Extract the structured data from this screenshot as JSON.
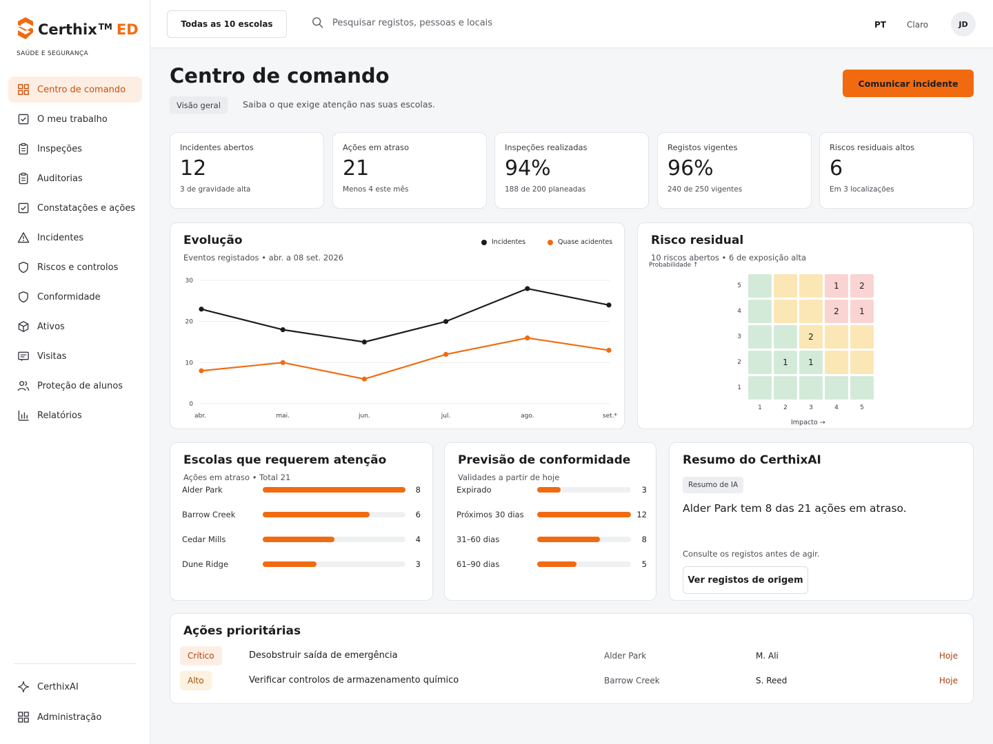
{
  "brand": {
    "name": "Certhix",
    "tm": "TM",
    "suffix": "ED",
    "tagline": "SAÚDE E SEGURANÇA"
  },
  "nav": {
    "items": [
      {
        "label": "Centro de comando",
        "icon": "grid-icon",
        "active": true
      },
      {
        "label": "O meu trabalho",
        "icon": "checkbox-icon"
      },
      {
        "label": "Inspeções",
        "icon": "clipboard-icon"
      },
      {
        "label": "Auditorias",
        "icon": "clipboard-icon"
      },
      {
        "label": "Constatações e ações",
        "icon": "checkbox-icon"
      },
      {
        "label": "Incidentes",
        "icon": "warning-icon"
      },
      {
        "label": "Riscos e controlos",
        "icon": "shield-icon"
      },
      {
        "label": "Conformidade",
        "icon": "shield-icon"
      },
      {
        "label": "Ativos",
        "icon": "cube-icon"
      },
      {
        "label": "Visitas",
        "icon": "id-card-icon"
      },
      {
        "label": "Proteção de alunos",
        "icon": "users-icon"
      },
      {
        "label": "Relatórios",
        "icon": "bar-chart-icon"
      }
    ],
    "bottom": [
      {
        "label": "CerthixAI",
        "icon": "sparkle-icon"
      },
      {
        "label": "Administração",
        "icon": "grid-icon"
      }
    ]
  },
  "topbar": {
    "school_select": "Todas as 10 escolas",
    "search_placeholder": "Pesquisar registos, pessoas e locais",
    "lang": "PT",
    "theme": "Claro",
    "avatar": "JD"
  },
  "header": {
    "title": "Centro de comando",
    "pill": "Visão geral",
    "subtitle": "Saiba o que exige atenção nas suas escolas.",
    "report_button": "Comunicar incidente"
  },
  "kpis": [
    {
      "label": "Incidentes abertos",
      "value": "12",
      "sub": "3 de gravidade alta"
    },
    {
      "label": "Ações em atraso",
      "value": "21",
      "sub": "Menos 4 este mês"
    },
    {
      "label": "Inspeções realizadas",
      "value": "94%",
      "sub": "188 de 200 planeadas"
    },
    {
      "label": "Registos vigentes",
      "value": "96%",
      "sub": "240 de 250 vigentes"
    },
    {
      "label": "Riscos residuais altos",
      "value": "6",
      "sub": "Em 3 localizações"
    }
  ],
  "trend": {
    "title": "Evolução",
    "subtitle": "Eventos registados • abr. a 08 set. 2026",
    "colors": {
      "incidents": "#1c1c1e",
      "near": "#f26a10"
    }
  },
  "risk": {
    "title": "Risco residual",
    "subtitle": "10 riscos abertos • 6 de exposição alta",
    "y_title": "Probabilidade ↑",
    "x_title": "Impacto →",
    "rows": [
      "5",
      "4",
      "3",
      "2",
      "1"
    ],
    "cols": [
      "1",
      "2",
      "3",
      "4",
      "5"
    ],
    "levels": [
      [
        "g",
        "y",
        "y",
        "r",
        "r"
      ],
      [
        "g",
        "y",
        "y",
        "r",
        "r"
      ],
      [
        "g",
        "g",
        "y",
        "y",
        "y"
      ],
      [
        "g",
        "g",
        "g",
        "y",
        "y"
      ],
      [
        "g",
        "g",
        "g",
        "g",
        "g"
      ]
    ],
    "counts": [
      [
        "",
        "",
        "",
        "1",
        "2"
      ],
      [
        "",
        "",
        "",
        "2",
        "1"
      ],
      [
        "",
        "",
        "2",
        "",
        ""
      ],
      [
        "",
        "1",
        "1",
        "",
        ""
      ],
      [
        "",
        "",
        "",
        "",
        ""
      ]
    ],
    "colors": {
      "g": "#d3ead9",
      "y": "#fbe6b6",
      "r": "#f9d4d2"
    }
  },
  "schools": {
    "title": "Escolas que requerem atenção",
    "subtitle": "Ações em atraso • Total 21",
    "max": 8,
    "rows": [
      {
        "label": "Alder Park",
        "value": 8
      },
      {
        "label": "Barrow Creek",
        "value": 6
      },
      {
        "label": "Cedar Mills",
        "value": 4
      },
      {
        "label": "Dune Ridge",
        "value": 3
      }
    ]
  },
  "forecast": {
    "title": "Previsão de conformidade",
    "subtitle": "Validades a partir de hoje",
    "max": 12,
    "rows": [
      {
        "label": "Expirado",
        "value": 3
      },
      {
        "label": "Próximos 30 dias",
        "value": 12
      },
      {
        "label": "31–60 dias",
        "value": 8
      },
      {
        "label": "61–90 dias",
        "value": 5
      }
    ]
  },
  "ai": {
    "title": "Resumo do CerthixAI",
    "pill": "Resumo de IA",
    "text": "Alder Park tem 8 das 21 ações em atraso.",
    "note": "Consulte os registos antes de agir.",
    "button": "Ver registos de origem"
  },
  "priority": {
    "title": "Ações prioritárias",
    "rows": [
      {
        "level": "Crítico",
        "kind": "crit",
        "action": "Desobstruir saída de emergência",
        "school": "Alder Park",
        "owner": "M. Ali",
        "due": "Hoje"
      },
      {
        "level": "Alto",
        "kind": "high",
        "action": "Verificar controlos de armazenamento químico",
        "school": "Barrow Creek",
        "owner": "S. Reed",
        "due": "Hoje"
      }
    ]
  },
  "chart_data": {
    "type": "line",
    "title": "Evolução",
    "categories": [
      "abr.",
      "mai.",
      "jun.",
      "jul.",
      "ago.",
      "set.*"
    ],
    "series": [
      {
        "name": "Incidentes",
        "values": [
          23,
          18,
          15,
          20,
          28,
          24
        ]
      },
      {
        "name": "Quase acidentes",
        "values": [
          8,
          10,
          6,
          12,
          16,
          13
        ]
      }
    ],
    "ylim": [
      0,
      30
    ],
    "yticks": [
      "0",
      "10",
      "20",
      "30"
    ],
    "grid": true,
    "legend": "top-right"
  }
}
